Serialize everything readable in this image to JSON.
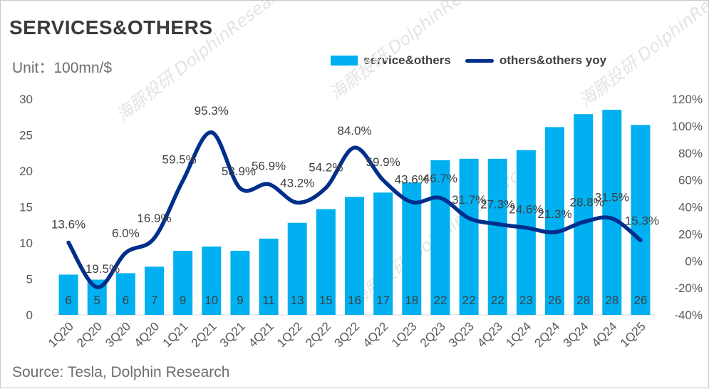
{
  "title": "SERVICES&OTHERS",
  "unit": "Unit：100mn/$",
  "source": "Source: Tesla, Dolphin Research",
  "legend": {
    "bar": "service&others",
    "line": "others&others yoy"
  },
  "colors": {
    "bar": "#00b0f0",
    "line": "#002e8b"
  },
  "chart_data": {
    "type": "bar+line",
    "title": "SERVICES&OTHERS",
    "categories": [
      "1Q20",
      "2Q20",
      "3Q20",
      "4Q20",
      "1Q21",
      "2Q21",
      "3Q21",
      "4Q21",
      "1Q22",
      "2Q22",
      "3Q22",
      "4Q22",
      "1Q23",
      "2Q23",
      "3Q23",
      "4Q23",
      "1Q24",
      "2Q24",
      "3Q24",
      "4Q24",
      "1Q25"
    ],
    "series": [
      {
        "name": "service&others",
        "type": "bar",
        "axis": "left",
        "values": [
          5.6,
          4.9,
          5.8,
          6.7,
          8.9,
          9.5,
          8.9,
          10.6,
          12.8,
          14.7,
          16.4,
          17.0,
          18.4,
          21.5,
          21.7,
          21.7,
          22.9,
          26.1,
          27.9,
          28.5,
          26.4
        ],
        "labels": [
          "6",
          "5",
          "6",
          "7",
          "9",
          "10",
          "9",
          "11",
          "13",
          "15",
          "16",
          "17",
          "18",
          "22",
          "22",
          "22",
          "23",
          "26",
          "28",
          "28",
          "26"
        ]
      },
      {
        "name": "others&others yoy",
        "type": "line",
        "axis": "right",
        "values": [
          13.6,
          -19.5,
          6.0,
          16.9,
          59.5,
          95.3,
          53.9,
          56.9,
          43.2,
          54.2,
          84.0,
          59.9,
          43.6,
          46.7,
          31.7,
          27.3,
          24.6,
          21.3,
          28.8,
          31.5,
          15.3
        ],
        "labels": [
          "13.6%",
          "-19.5%",
          "6.0%",
          "16.9%",
          "59.5%",
          "95.3%",
          "53.9%",
          "56.9%",
          "43.2%",
          "54.2%",
          "84.0%",
          "59.9%",
          "43.6%",
          "46.7%",
          "31.7%",
          "27.3%",
          "24.6%",
          "21.3%",
          "28.8%",
          "31.5%",
          "15.3%"
        ]
      }
    ],
    "left_axis": {
      "min": 0,
      "max": 30,
      "ticks": [
        "0",
        "5",
        "10",
        "15",
        "20",
        "25",
        "30"
      ]
    },
    "right_axis": {
      "min": -40,
      "max": 120,
      "ticks": [
        "-40%",
        "-20%",
        "0%",
        "20%",
        "40%",
        "60%",
        "80%",
        "100%",
        "120%"
      ]
    },
    "grid": false,
    "legend_position": "top-right"
  },
  "watermark": "海豚投研 DolphinResearch"
}
